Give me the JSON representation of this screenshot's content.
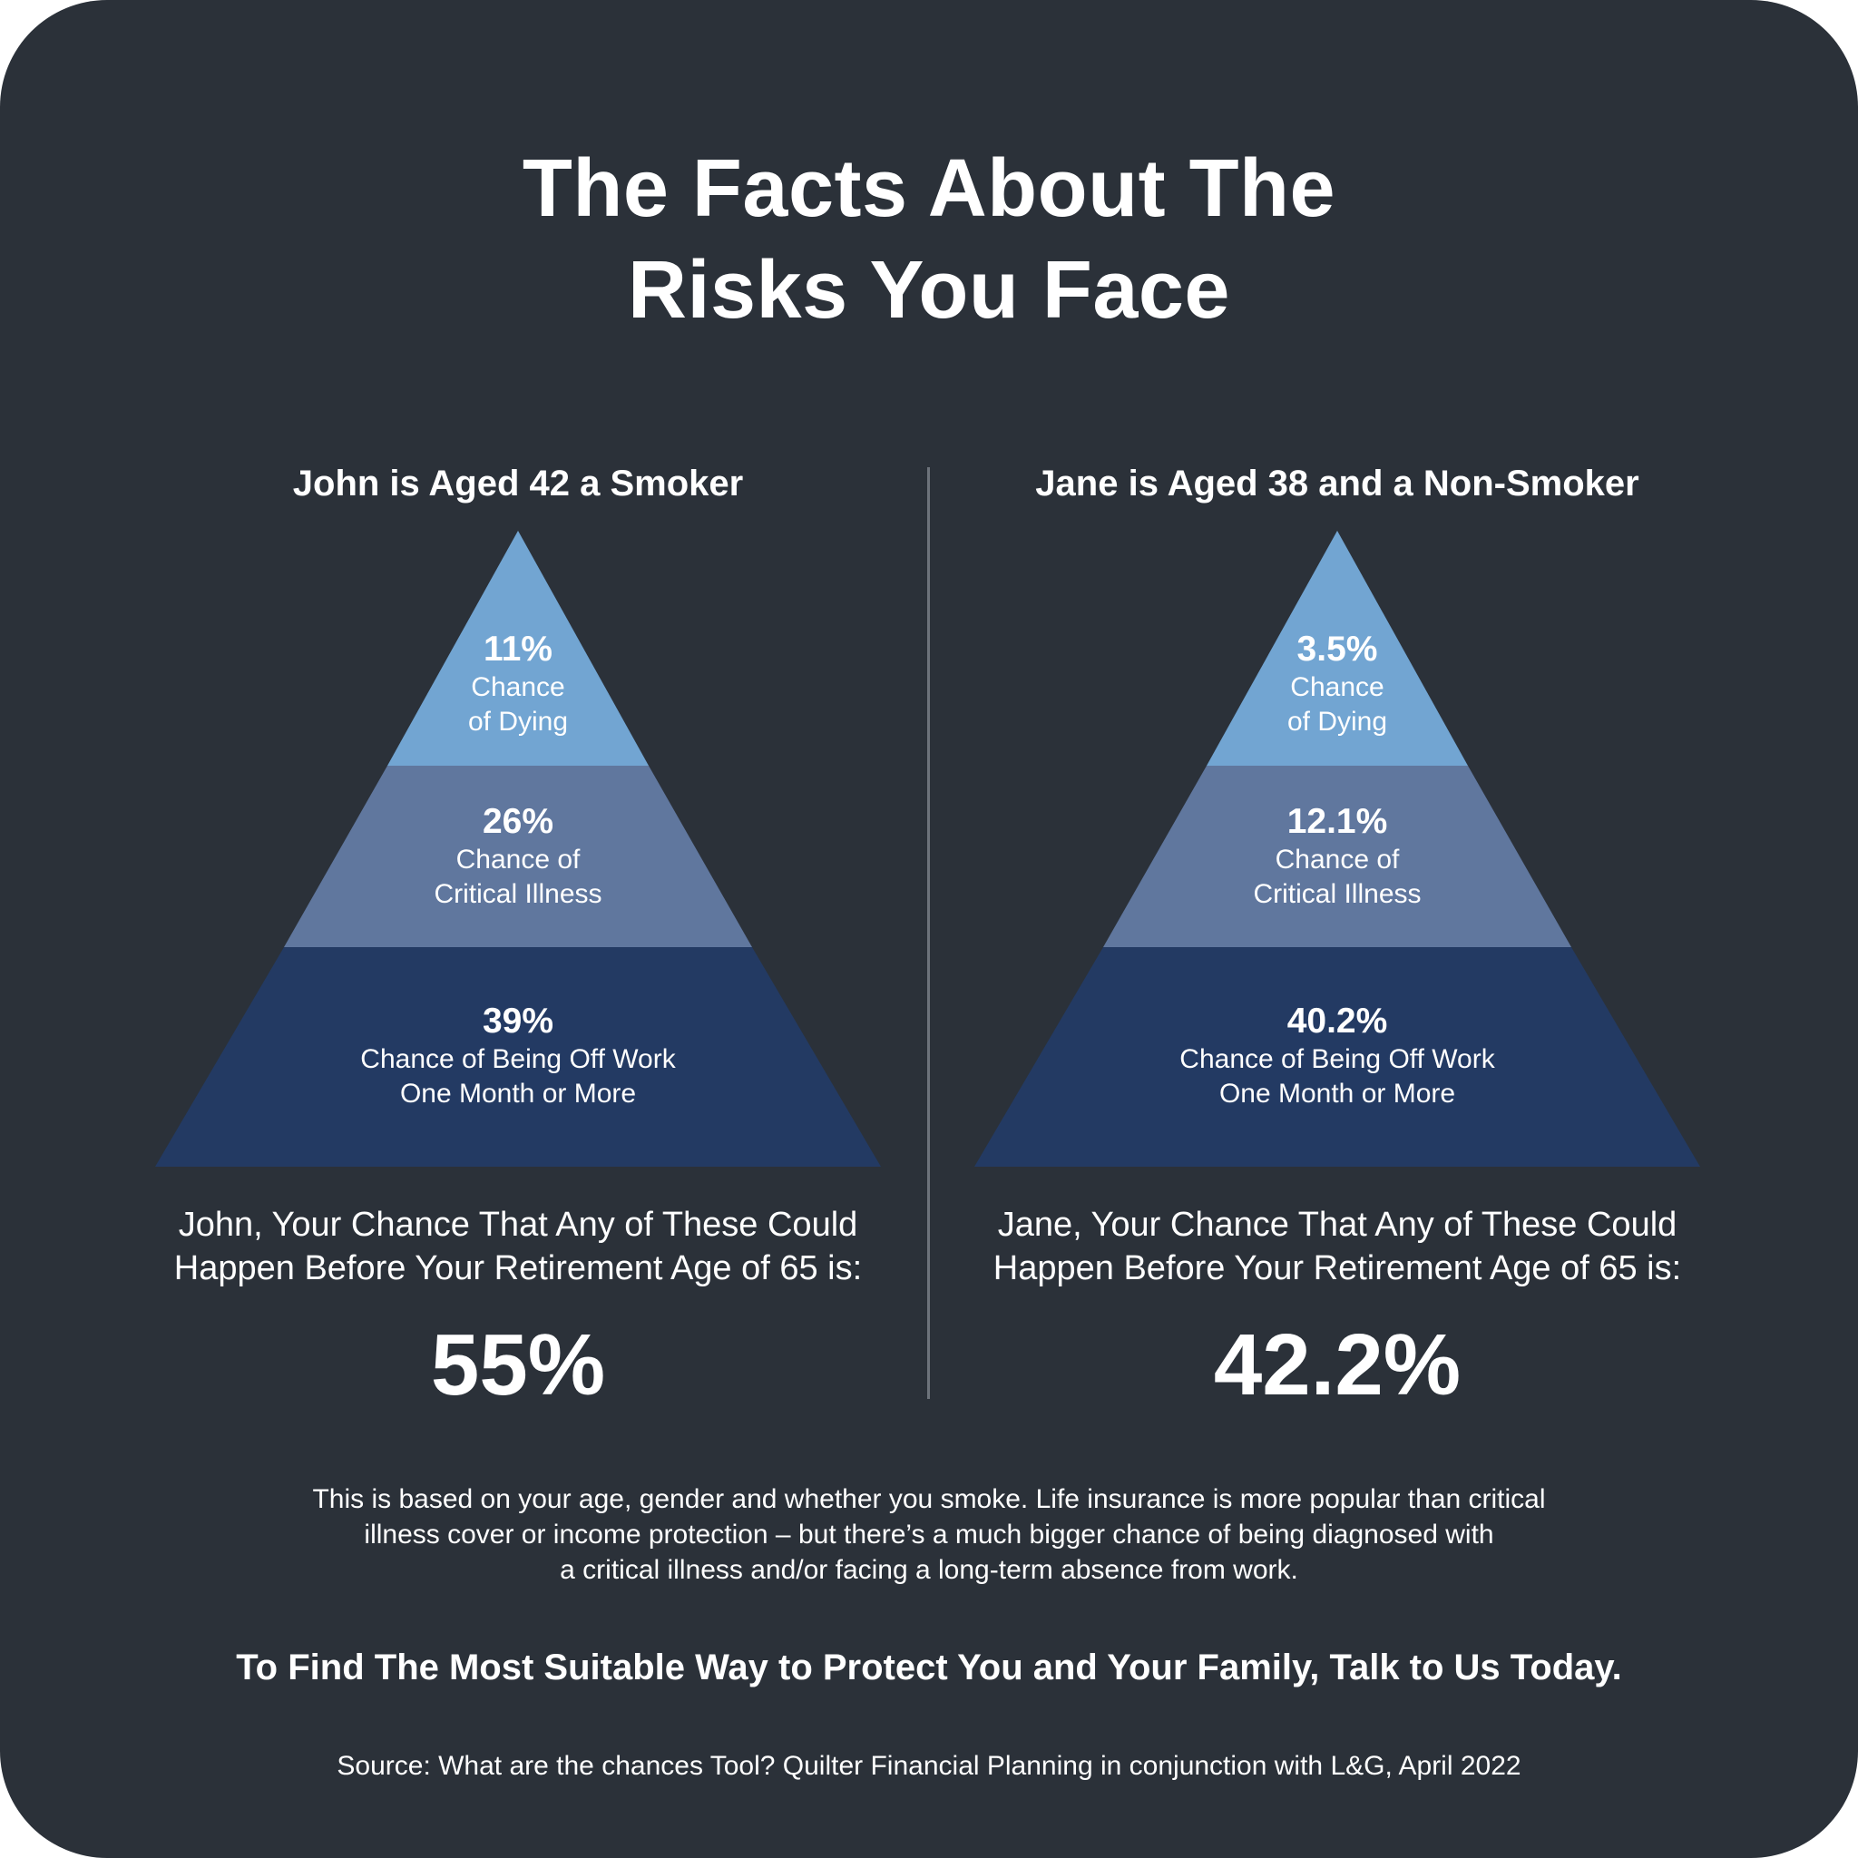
{
  "title": {
    "line1": "The Facts About The",
    "line2": "Risks You Face"
  },
  "colors": {
    "background": "#2b3139",
    "tier_top": "#72a5d2",
    "tier_middle": "#60779e",
    "tier_bottom": "#233a63",
    "divider": "#6d737b"
  },
  "profiles": [
    {
      "heading": "John is Aged 42 a Smoker",
      "tiers": [
        {
          "value": "11%",
          "label": "Chance\nof Dying"
        },
        {
          "value": "26%",
          "label": "Chance of\nCritical Illness"
        },
        {
          "value": "39%",
          "label": "Chance of Being Off Work\nOne Month or More"
        }
      ],
      "summary": "John, Your Chance That Any of These Could\nHappen Before Your Retirement Age of 65 is:",
      "total": "55%"
    },
    {
      "heading": "Jane is Aged 38 and a Non-Smoker",
      "tiers": [
        {
          "value": "3.5%",
          "label": "Chance\nof Dying"
        },
        {
          "value": "12.1%",
          "label": "Chance of\nCritical Illness"
        },
        {
          "value": "40.2%",
          "label": "Chance of Being Off Work\nOne Month or More"
        }
      ],
      "summary": "Jane, Your Chance That Any of These Could\nHappen Before Your Retirement Age of 65 is:",
      "total": "42.2%"
    }
  ],
  "note": "This is based on your age, gender and whether you smoke. Life insurance is more popular than critical\nillness cover or income protection – but there’s a much bigger chance of being diagnosed with\na critical illness and/or facing a long-term absence from work.",
  "cta": "To Find The Most Suitable Way to Protect You and Your Family, Talk to Us Today.",
  "source": "Source: What are the chances Tool? Quilter Financial Planning in conjunction with L&G, April 2022"
}
